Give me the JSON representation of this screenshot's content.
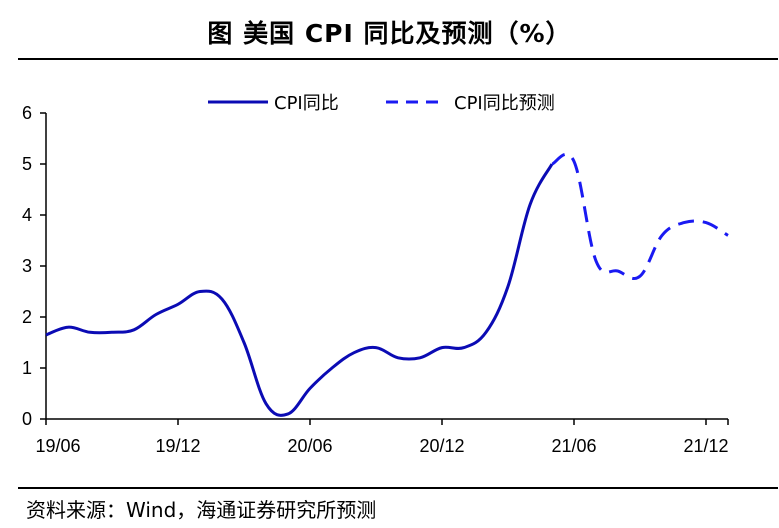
{
  "title": "图  美国 CPI 同比及预测（%）",
  "source": "资料来源：Wind，海通证券研究所预测",
  "chart_data": {
    "type": "line",
    "ylim": [
      0,
      6
    ],
    "y_ticks": [
      "0",
      "1",
      "2",
      "3",
      "4",
      "5",
      "6"
    ],
    "x_ticks": [
      "19/06",
      "19/12",
      "20/06",
      "20/12",
      "21/06",
      "21/12"
    ],
    "x_start": "2019-06",
    "x_end": "2022-01",
    "legend_placement": "top",
    "series": [
      {
        "name": "CPI同比",
        "style": "solid",
        "color": "#0b0bb4",
        "x": [
          "2019-06",
          "2019-07",
          "2019-08",
          "2019-09",
          "2019-10",
          "2019-11",
          "2019-12",
          "2020-01",
          "2020-02",
          "2020-03",
          "2020-04",
          "2020-05",
          "2020-06",
          "2020-07",
          "2020-08",
          "2020-09",
          "2020-10",
          "2020-11",
          "2020-12",
          "2021-01",
          "2021-02",
          "2021-03",
          "2021-04",
          "2021-05"
        ],
        "values": [
          1.65,
          1.8,
          1.7,
          1.7,
          1.75,
          2.05,
          2.25,
          2.5,
          2.35,
          1.5,
          0.3,
          0.1,
          0.6,
          1.0,
          1.3,
          1.4,
          1.2,
          1.2,
          1.4,
          1.4,
          1.7,
          2.6,
          4.2,
          5.0
        ]
      },
      {
        "name": "CPI同比预测",
        "style": "dashed",
        "color": "#1a1af2",
        "x": [
          "2021-05",
          "2021-06",
          "2021-07",
          "2021-08",
          "2021-09",
          "2021-10",
          "2021-11",
          "2021-12",
          "2022-01"
        ],
        "values": [
          5.0,
          5.05,
          3.1,
          2.9,
          2.8,
          3.6,
          3.85,
          3.85,
          3.6
        ]
      }
    ]
  }
}
